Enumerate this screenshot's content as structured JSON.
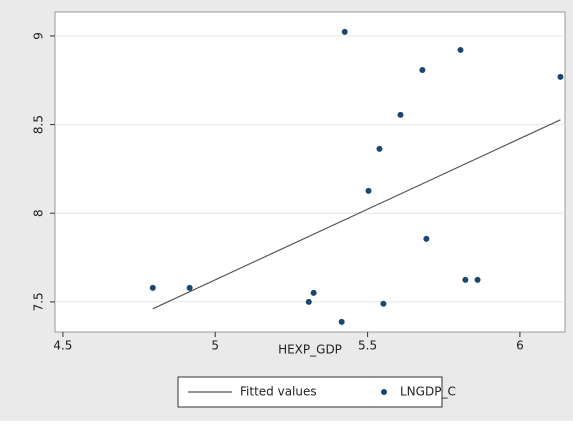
{
  "chart_data": {
    "type": "scatter",
    "xlabel": "HEXP_GDP",
    "xlim": [
      4.474,
      6.148
    ],
    "ylim": [
      7.33,
      9.135
    ],
    "xticks": [
      4.5,
      5,
      5.5,
      6
    ],
    "yticks": [
      7.5,
      8,
      8.5,
      9
    ],
    "grid": true,
    "legend": "bottom",
    "series": [
      {
        "name": "Fitted values",
        "type": "line",
        "color": "#555555",
        "x": [
          4.795,
          6.133
        ],
        "values": [
          7.461,
          8.527
        ]
      },
      {
        "name": "LNGDP_C",
        "type": "scatter",
        "color": "#1a476f",
        "x": [
          4.795,
          4.916,
          5.307,
          5.323,
          5.415,
          5.425,
          5.503,
          5.539,
          5.552,
          5.608,
          5.68,
          5.693,
          5.805,
          5.821,
          5.861,
          6.133
        ],
        "values": [
          7.579,
          7.579,
          7.5,
          7.551,
          7.387,
          9.023,
          8.126,
          8.363,
          7.489,
          8.555,
          8.808,
          7.855,
          8.921,
          7.624,
          7.624,
          8.769
        ]
      }
    ]
  }
}
